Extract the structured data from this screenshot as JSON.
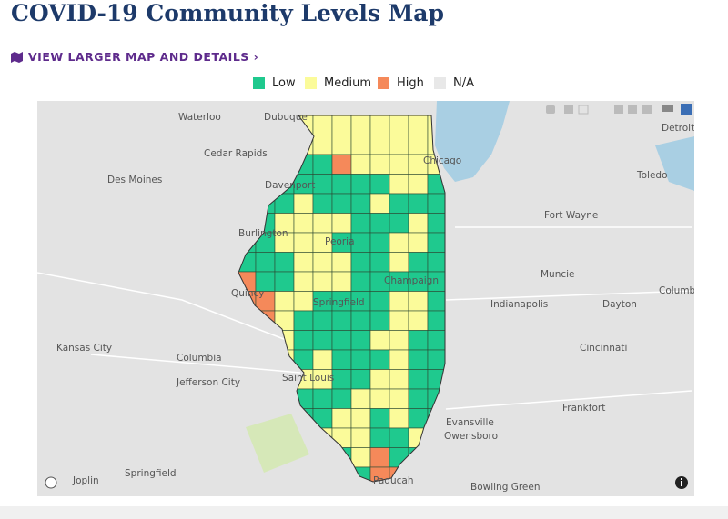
{
  "header": {
    "title": "COVID-19 Community Levels Map",
    "link": "VIEW LARGER MAP AND DETAILS ›"
  },
  "legend": [
    {
      "label": "Low",
      "color": "#1fc98e"
    },
    {
      "label": "Medium",
      "color": "#fbfb9a"
    },
    {
      "label": "High",
      "color": "#f5895a"
    },
    {
      "label": "N/A",
      "color": "#e8e8e8"
    }
  ],
  "map": {
    "places": [
      "Waterloo",
      "Dubuque",
      "Cedar Rapids",
      "Des Moines",
      "Davenport",
      "Burlington",
      "Peoria",
      "Quincy",
      "Springfield",
      "Champaign",
      "Chicago",
      "Fort Wayne",
      "Toledo",
      "Detroit",
      "Muncie",
      "Indianapolis",
      "Dayton",
      "Columbu",
      "Kansas City",
      "Columbia",
      "Jefferson City",
      "Saint Louis",
      "Cincinnati",
      "Frankfort",
      "Evansville",
      "Owensboro",
      "Paducah",
      "Joplin",
      "Springfield",
      "Bowling Green"
    ]
  }
}
